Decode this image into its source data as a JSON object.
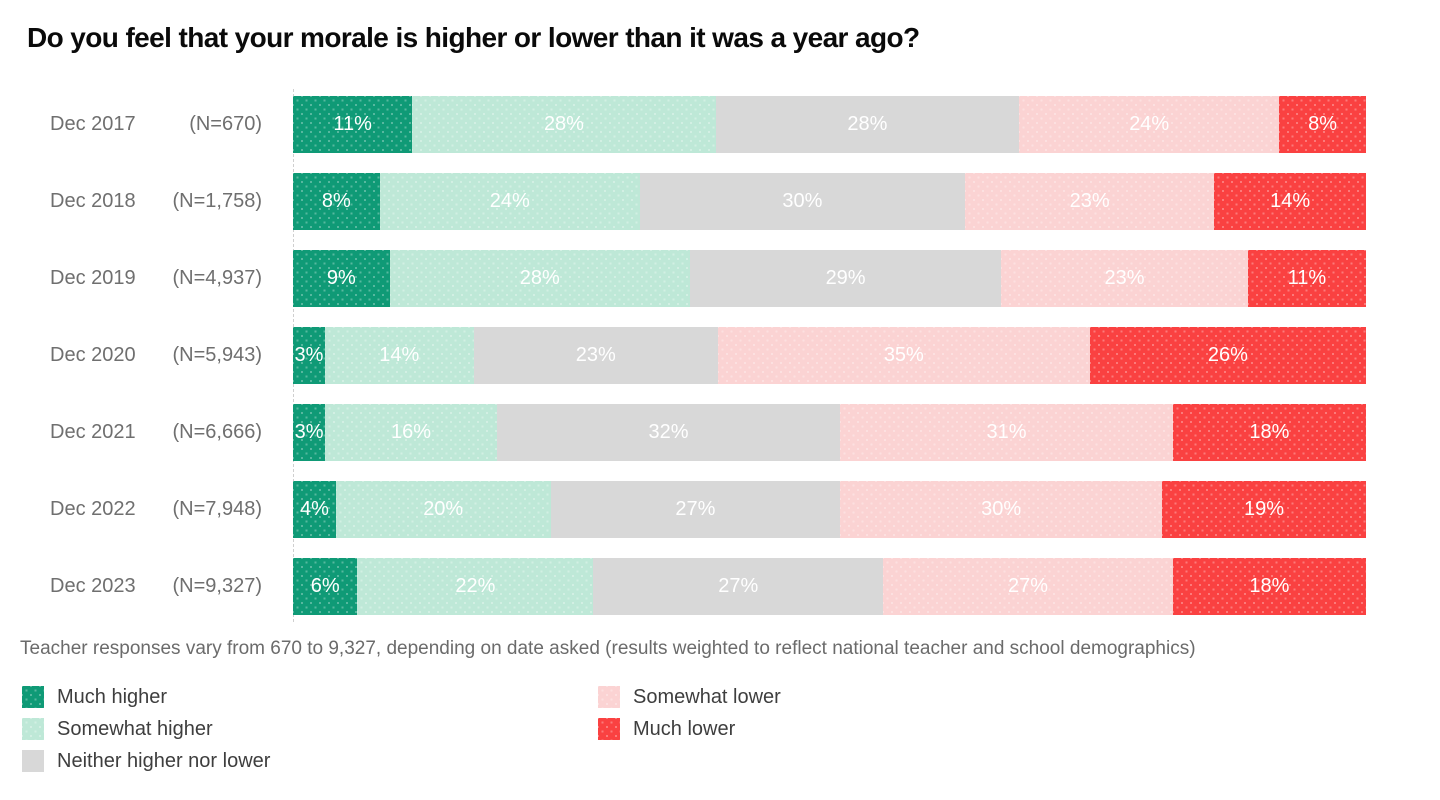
{
  "title": "Do you feel that your morale is higher or lower than it was a year ago?",
  "footnote": "Teacher responses vary from 670 to 9,327, depending on date asked (results weighted to reflect national teacher and school demographics)",
  "chart_data": {
    "type": "bar",
    "variant": "stacked-horizontal",
    "xlim": [
      0,
      100
    ],
    "value_suffix": "%",
    "grid": false,
    "legend_position": "bottom",
    "categories": [
      "Dec 2017",
      "Dec 2018",
      "Dec 2019",
      "Dec 2020",
      "Dec 2021",
      "Dec 2022",
      "Dec 2023"
    ],
    "sample_labels": [
      "(N=670)",
      "(N=1,758)",
      "(N=4,937)",
      "(N=5,943)",
      "(N=6,666)",
      "(N=7,948)",
      "(N=9,327)"
    ],
    "series": [
      {
        "name": "Much higher",
        "color": "#0f9a76",
        "dotted": true,
        "values": [
          11,
          8,
          9,
          3,
          3,
          4,
          6
        ]
      },
      {
        "name": "Somewhat higher",
        "color": "#bee8d7",
        "dotted": true,
        "values": [
          28,
          24,
          28,
          14,
          16,
          20,
          22
        ]
      },
      {
        "name": "Neither higher nor lower",
        "color": "#d8d8d8",
        "dotted": false,
        "values": [
          28,
          30,
          29,
          23,
          32,
          27,
          27
        ]
      },
      {
        "name": "Somewhat lower",
        "color": "#fbd3d3",
        "dotted": true,
        "values": [
          24,
          23,
          23,
          35,
          31,
          30,
          27
        ]
      },
      {
        "name": "Much lower",
        "color": "#fa4141",
        "dotted": true,
        "values": [
          8,
          14,
          11,
          26,
          18,
          19,
          18
        ]
      }
    ],
    "legend_columns": [
      [
        0,
        1,
        2
      ],
      [
        3,
        4
      ]
    ]
  }
}
